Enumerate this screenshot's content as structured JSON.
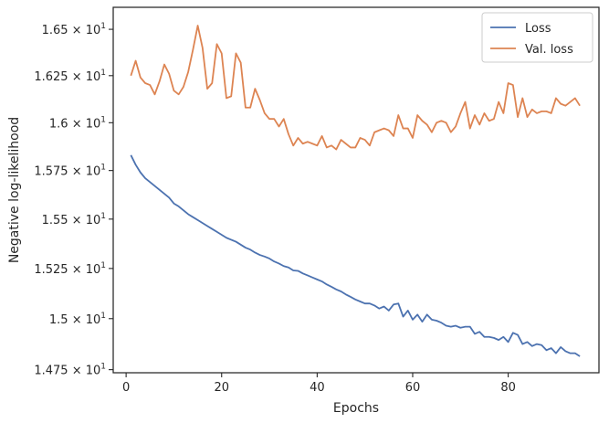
{
  "chart_data": {
    "type": "line",
    "xlabel": "Epochs",
    "ylabel": "Negative log-likelihood",
    "xlim": [
      -2.7,
      99
    ],
    "ylim": [
      14.735,
      16.62
    ],
    "yscale": "log",
    "grid": false,
    "legend_position": "top-right",
    "x_ticks": [
      0,
      20,
      40,
      60,
      80
    ],
    "x_tick_labels": [
      "0",
      "20",
      "40",
      "60",
      "80"
    ],
    "y_ticks": [
      {
        "value": 14.75,
        "mantissa": "1.475"
      },
      {
        "value": 15.0,
        "mantissa": "1.5"
      },
      {
        "value": 15.25,
        "mantissa": "1.525"
      },
      {
        "value": 15.5,
        "mantissa": "1.55"
      },
      {
        "value": 15.75,
        "mantissa": "1.575"
      },
      {
        "value": 16.0,
        "mantissa": "1.6"
      },
      {
        "value": 16.25,
        "mantissa": "1.625"
      },
      {
        "value": 16.5,
        "mantissa": "1.65"
      }
    ],
    "y_tick_base": "× 10",
    "y_tick_exp": "1",
    "x": [
      1,
      2,
      3,
      4,
      5,
      6,
      7,
      8,
      9,
      10,
      11,
      12,
      13,
      14,
      15,
      16,
      17,
      18,
      19,
      20,
      21,
      22,
      23,
      24,
      25,
      26,
      27,
      28,
      29,
      30,
      31,
      32,
      33,
      34,
      35,
      36,
      37,
      38,
      39,
      40,
      41,
      42,
      43,
      44,
      45,
      46,
      47,
      48,
      49,
      50,
      51,
      52,
      53,
      54,
      55,
      56,
      57,
      58,
      59,
      60,
      61,
      62,
      63,
      64,
      65,
      66,
      67,
      68,
      69,
      70,
      71,
      72,
      73,
      74,
      75,
      76,
      77,
      78,
      79,
      80,
      81,
      82,
      83,
      84,
      85,
      86,
      87,
      88,
      89,
      90,
      91,
      92,
      93,
      94,
      95
    ],
    "series": [
      {
        "name": "Loss",
        "color": "#4c72b0",
        "values": [
          15.83,
          15.78,
          15.74,
          15.71,
          15.69,
          15.67,
          15.65,
          15.63,
          15.61,
          15.58,
          15.565,
          15.545,
          15.525,
          15.51,
          15.495,
          15.48,
          15.465,
          15.45,
          15.435,
          15.42,
          15.405,
          15.395,
          15.385,
          15.37,
          15.355,
          15.345,
          15.33,
          15.318,
          15.31,
          15.3,
          15.285,
          15.275,
          15.262,
          15.255,
          15.24,
          15.238,
          15.225,
          15.215,
          15.205,
          15.195,
          15.185,
          15.17,
          15.158,
          15.145,
          15.135,
          15.12,
          15.108,
          15.095,
          15.085,
          15.075,
          15.075,
          15.065,
          15.05,
          15.06,
          15.04,
          15.07,
          15.075,
          15.01,
          15.04,
          14.995,
          15.02,
          14.985,
          15.02,
          14.995,
          14.99,
          14.98,
          14.965,
          14.96,
          14.965,
          14.955,
          14.96,
          14.96,
          14.925,
          14.935,
          14.91,
          14.91,
          14.905,
          14.895,
          14.91,
          14.885,
          14.93,
          14.92,
          14.875,
          14.885,
          14.865,
          14.875,
          14.87,
          14.845,
          14.855,
          14.83,
          14.86,
          14.84,
          14.83,
          14.83,
          14.815
        ]
      },
      {
        "name": "Val. loss",
        "color": "#dd8452",
        "values": [
          16.25,
          16.33,
          16.24,
          16.21,
          16.2,
          16.15,
          16.22,
          16.31,
          16.26,
          16.17,
          16.15,
          16.19,
          16.27,
          16.39,
          16.52,
          16.4,
          16.18,
          16.21,
          16.42,
          16.37,
          16.13,
          16.14,
          16.37,
          16.32,
          16.08,
          16.08,
          16.18,
          16.12,
          16.05,
          16.02,
          16.02,
          15.98,
          16.02,
          15.94,
          15.88,
          15.92,
          15.89,
          15.9,
          15.89,
          15.88,
          15.93,
          15.87,
          15.88,
          15.86,
          15.91,
          15.89,
          15.87,
          15.87,
          15.92,
          15.91,
          15.88,
          15.95,
          15.96,
          15.97,
          15.96,
          15.93,
          16.04,
          15.97,
          15.97,
          15.92,
          16.04,
          16.01,
          15.99,
          15.95,
          16.0,
          16.01,
          16.0,
          15.95,
          15.98,
          16.05,
          16.11,
          15.97,
          16.04,
          15.99,
          16.05,
          16.01,
          16.02,
          16.11,
          16.05,
          16.21,
          16.2,
          16.03,
          16.13,
          16.03,
          16.07,
          16.05,
          16.06,
          16.06,
          16.05,
          16.13,
          16.1,
          16.09,
          16.11,
          16.13,
          16.09
        ]
      }
    ]
  }
}
